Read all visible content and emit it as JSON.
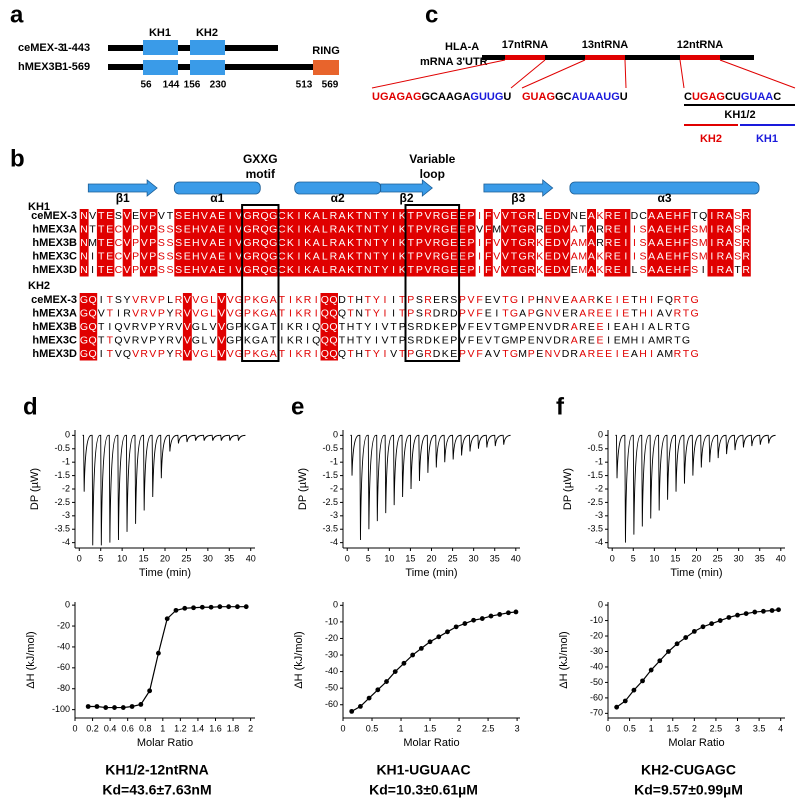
{
  "panel_a": {
    "label": "a",
    "proteins": [
      {
        "name": "ceMEX-3",
        "range": "1-443"
      },
      {
        "name": "hMEX3B",
        "range": "1-569"
      }
    ],
    "domains": [
      "KH1",
      "KH2",
      "RING"
    ],
    "positions": [
      56,
      144,
      156,
      230,
      513,
      569
    ]
  },
  "panel_b": {
    "label": "b",
    "secondary_structure": [
      "β1",
      "α1",
      "α2",
      "β2",
      "β3",
      "α3"
    ],
    "gxxg": [
      "GXXG",
      "motif"
    ],
    "variable_loop": [
      "Variable",
      "loop"
    ],
    "blocks": [
      {
        "name": "KH1",
        "rows": [
          {
            "name": "ceMEX-3",
            "sequence": "NVTESVEVPVTSEHVAEIVGRQGCKIKALRAKTNTYIKTPVRGEEPIFVVTGRLEDVNEAKREIDCAAEHFTQIRASR"
          },
          {
            "name": "hMEX3A",
            "sequence": "NTTECVPVPSSSEHVAEIVGRQGCKIKALRAKTNTYIKTPVRGEEPVFMVTGRREDVATARREIISAAEHFSMIRASR"
          },
          {
            "name": "hMEX3B",
            "sequence": "NMTECVPVPSSSEHVAEIVGRQGCKIKALRAKTNTYIKTPVRGEEPIFVVTGRKEDVAMARREIISAAEHFSMIRASR"
          },
          {
            "name": "hMEX3C",
            "sequence": "NITECVPVPSSSEHVAEIVGRQGCKIKALRAKTNTYIKTPVRGEEPIFVVTGRKEDVAMAKREIISAAEHFSMIRASR"
          },
          {
            "name": "hMEX3D",
            "sequence": "NITECVPVPSSSEHVAEIVGRQGCKIKALRAKTNTYIKTPVRGEEPIFVVTGRKEDVEMAKREILSAAEHFSIIRATR"
          }
        ]
      },
      {
        "name": "KH2",
        "rows": [
          {
            "name": "ceMEX-3",
            "sequence": "GQITSYVRVPLRVVGLVVGPKGATIKRIQQDTHTYIITPSRERSPVFEVTGIPHNVEAARKEIETHIFQRTG"
          },
          {
            "name": "hMEX3A",
            "sequence": "GQVTIRVRVPYRVVGLVVGPKGATIKRIQQQTNTYIITPSRDRDPVFEITGAPGNVERAREEIETHIAVRTG"
          },
          {
            "name": "hMEX3B",
            "sequence": "GQTIQVRVPYRVVGLVVGPKGATIKRIQQQTHTYIVTPSRDKEPVFEVTGMPENVDRAREEIEAHIALRTG"
          },
          {
            "name": "hMEX3C",
            "sequence": "GQTTQVRVPYRVVGLVVGPKGATIKRIQQQTHTYIVTPSRDKEPVFEVTGMPENVDRAREEIEMHIAMRTG"
          },
          {
            "name": "hMEX3D",
            "sequence": "GQITVQVRVPYRVVGLVVGPKGATIKRIQQQTHTYIVTPGRDKEPVFAVTGMPENVDRAREEIEAHIAMRTG"
          }
        ]
      }
    ]
  },
  "panel_c": {
    "label": "c",
    "transcript": [
      "HLA-A",
      "mRNA 3'UTR"
    ],
    "rnas": [
      "17ntRNA",
      "13ntRNA",
      "12ntRNA"
    ],
    "sequences": [
      [
        {
          "text": "UGAGAG",
          "color": "#e00000"
        },
        {
          "text": "GCAAGA",
          "color": "#000000"
        },
        {
          "text": "GUUG",
          "color": "#1a1adb"
        },
        {
          "text": "U",
          "color": "#000000"
        }
      ],
      [
        {
          "text": "GUAG",
          "color": "#e00000"
        },
        {
          "text": "GC",
          "color": "#000000"
        },
        {
          "text": "AUAAUG",
          "color": "#1a1adb"
        },
        {
          "text": "U",
          "color": "#000000"
        }
      ],
      [
        {
          "text": "C",
          "color": "#000000"
        },
        {
          "text": "UGAG",
          "color": "#e00000"
        },
        {
          "text": "CU",
          "color": "#000000"
        },
        {
          "text": "GUAA",
          "color": "#1a1adb"
        },
        {
          "text": "C",
          "color": "#000000"
        }
      ]
    ],
    "construct": "KH1/2",
    "domains": [
      {
        "text": "KH2",
        "color": "#e00000"
      },
      {
        "text": "KH1",
        "color": "#1a1adb"
      }
    ]
  },
  "chart_data": [
    {
      "type": "thermogram",
      "label": "d",
      "x": [
        1,
        3,
        5,
        7,
        9,
        11,
        13,
        15,
        17,
        19,
        21,
        23,
        25,
        27,
        29,
        31,
        33,
        35,
        37
      ],
      "values": [
        -2.1,
        -4.1,
        -4.1,
        -4.0,
        -3.9,
        -3.6,
        -3.3,
        -2.8,
        -2.3,
        -1.6,
        -0.6,
        -0.3,
        -0.25,
        -0.2,
        -0.2,
        -0.2,
        -0.2,
        -0.2,
        -0.2
      ],
      "xlim": [
        -1,
        41
      ],
      "ylim": [
        -4.2,
        0.2
      ],
      "xticks": [
        0,
        5,
        10,
        15,
        20,
        25,
        30,
        35,
        40
      ],
      "yticks": [
        0,
        -0.5,
        -1,
        -1.5,
        -2,
        -2.5,
        -3,
        -3.5,
        -4
      ],
      "xlabel": "Time (min)",
      "ylabel": "DP (µW)",
      "color": "#000000"
    },
    {
      "type": "thermogram",
      "label": "e",
      "x": [
        1,
        3,
        5,
        7,
        9,
        11,
        13,
        15,
        17,
        19,
        21,
        23,
        25,
        27,
        29,
        31,
        33,
        35,
        37
      ],
      "values": [
        -1.5,
        -3.9,
        -3.5,
        -3.2,
        -2.9,
        -2.6,
        -2.3,
        -2.0,
        -1.7,
        -1.4,
        -1.2,
        -1.0,
        -0.9,
        -0.75,
        -0.6,
        -0.5,
        -0.45,
        -0.4,
        -0.35
      ],
      "xlim": [
        -1,
        41
      ],
      "ylim": [
        -4.2,
        0.2
      ],
      "xticks": [
        0,
        5,
        10,
        15,
        20,
        25,
        30,
        35,
        40
      ],
      "yticks": [
        0,
        -0.5,
        -1,
        -1.5,
        -2,
        -2.5,
        -3,
        -3.5,
        -4
      ],
      "xlabel": "Time (min)",
      "ylabel": "DP (µW)",
      "color": "#000000"
    },
    {
      "type": "thermogram",
      "label": "f",
      "x": [
        1,
        3,
        5,
        7,
        9,
        11,
        13,
        15,
        17,
        19,
        21,
        23,
        25,
        27,
        29,
        31,
        33,
        35,
        37
      ],
      "values": [
        -1.6,
        -4.0,
        -3.7,
        -3.4,
        -3.1,
        -2.8,
        -2.4,
        -2.1,
        -1.8,
        -1.5,
        -1.2,
        -1.0,
        -0.85,
        -0.7,
        -0.55,
        -0.45,
        -0.4,
        -0.35,
        -0.3
      ],
      "xlim": [
        -1,
        41
      ],
      "ylim": [
        -4.2,
        0.2
      ],
      "xticks": [
        0,
        5,
        10,
        15,
        20,
        25,
        30,
        35,
        40
      ],
      "yticks": [
        0,
        -0.5,
        -1,
        -1.5,
        -2,
        -2.5,
        -3,
        -3.5,
        -4
      ],
      "xlabel": "Time (min)",
      "ylabel": "DP (µW)",
      "color": "#000000"
    },
    {
      "type": "scatter",
      "line": true,
      "x": [
        0.15,
        0.25,
        0.35,
        0.45,
        0.55,
        0.65,
        0.75,
        0.85,
        0.95,
        1.05,
        1.15,
        1.25,
        1.35,
        1.45,
        1.55,
        1.65,
        1.75,
        1.85,
        1.95
      ],
      "values": [
        -97,
        -97,
        -98,
        -98,
        -98,
        -97,
        -95,
        -82,
        -46,
        -13,
        -5,
        -3,
        -2.5,
        -2,
        -2,
        -1.5,
        -1.5,
        -1.5,
        -1.5
      ],
      "xlim": [
        0,
        2.05
      ],
      "ylim": [
        -108,
        3
      ],
      "xticks": [
        0,
        0.2,
        0.4,
        0.6,
        0.8,
        1,
        1.2,
        1.4,
        1.6,
        1.8,
        2
      ],
      "yticks": [
        0,
        -20,
        -40,
        -60,
        -80,
        -100
      ],
      "xlabel": "Molar Ratio",
      "ylabel": "ΔH (kJ/mol)",
      "color": "#000000",
      "title": "KH1/2-12ntRNA",
      "subtitle": "Kd=43.6±7.63nM"
    },
    {
      "type": "scatter",
      "line": true,
      "x": [
        0.15,
        0.3,
        0.45,
        0.6,
        0.75,
        0.9,
        1.05,
        1.2,
        1.35,
        1.5,
        1.65,
        1.8,
        1.95,
        2.1,
        2.25,
        2.4,
        2.55,
        2.7,
        2.85,
        2.98
      ],
      "values": [
        -64,
        -61,
        -56,
        -51,
        -46,
        -40,
        -35,
        -30,
        -26,
        -22,
        -19,
        -16,
        -13,
        -11,
        -9,
        -8,
        -6.5,
        -5.5,
        -4.5,
        -4
      ],
      "xlim": [
        0,
        3.05
      ],
      "ylim": [
        -68,
        2
      ],
      "xticks": [
        0,
        0.5,
        1,
        1.5,
        2,
        2.5,
        3
      ],
      "yticks": [
        0,
        -10,
        -20,
        -30,
        -40,
        -50,
        -60
      ],
      "xlabel": "Molar Ratio",
      "ylabel": "ΔH (kJ/mol)",
      "color": "#000000",
      "title": "KH1-UGUAAC",
      "subtitle": "Kd=10.3±0.61µM"
    },
    {
      "type": "scatter",
      "line": true,
      "x": [
        0.2,
        0.4,
        0.6,
        0.8,
        1,
        1.2,
        1.4,
        1.6,
        1.8,
        2,
        2.2,
        2.4,
        2.6,
        2.8,
        3,
        3.2,
        3.4,
        3.6,
        3.8,
        3.95
      ],
      "values": [
        -66,
        -62,
        -55,
        -49,
        -42,
        -36,
        -30,
        -25,
        -21,
        -17,
        -14,
        -12,
        -10,
        -8,
        -6.5,
        -5.5,
        -4.5,
        -4,
        -3.5,
        -3
      ],
      "xlim": [
        0,
        4.1
      ],
      "ylim": [
        -73,
        2
      ],
      "xticks": [
        0,
        0.5,
        1,
        1.5,
        2,
        2.5,
        3,
        3.5,
        4
      ],
      "yticks": [
        0,
        -10,
        -20,
        -30,
        -40,
        -50,
        -60,
        -70
      ],
      "xlabel": "Molar Ratio",
      "ylabel": "ΔH (kJ/mol)",
      "color": "#000000",
      "title": "KH2-CUGAGC",
      "subtitle": "Kd=9.57±0.99µM"
    }
  ]
}
